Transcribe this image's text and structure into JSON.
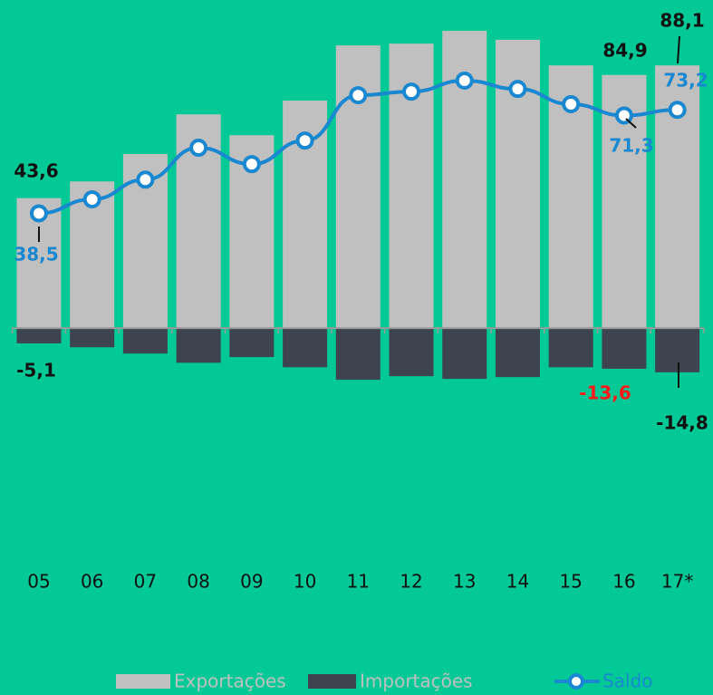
{
  "chart_data": {
    "type": "bar",
    "categories": [
      "05",
      "06",
      "07",
      "08",
      "09",
      "10",
      "11",
      "12",
      "13",
      "14",
      "15",
      "16",
      "17*"
    ],
    "series": [
      {
        "name": "Exportações",
        "color": "#c0c0c0",
        "values": [
          43.6,
          49.2,
          58.4,
          71.7,
          64.7,
          76.3,
          94.8,
          95.4,
          99.7,
          96.7,
          88.1,
          84.9,
          88.1
        ],
        "value_labels": [
          "43,6",
          null,
          null,
          null,
          null,
          null,
          null,
          null,
          null,
          null,
          null,
          "84,9",
          "88,1"
        ]
      },
      {
        "name": "Importações",
        "color": "#3d4450",
        "values": [
          -5.1,
          -6.4,
          -8.5,
          -11.6,
          -9.7,
          -13.1,
          -17.3,
          -16.1,
          -17.0,
          -16.4,
          -13.1,
          -13.6,
          -14.8
        ],
        "value_labels": [
          "-5,1",
          null,
          null,
          null,
          null,
          null,
          null,
          null,
          null,
          null,
          null,
          "-13,6",
          "-14,8"
        ]
      },
      {
        "name": "Saldo",
        "type": "line",
        "color": "#1a88d0",
        "values": [
          38.5,
          43.2,
          49.8,
          60.5,
          55.0,
          62.9,
          78.1,
          79.3,
          83.0,
          80.2,
          75.1,
          71.3,
          73.2
        ],
        "value_labels": [
          "38,5",
          null,
          null,
          null,
          null,
          null,
          null,
          null,
          null,
          null,
          null,
          "71,3",
          "73,2"
        ]
      }
    ],
    "ylim": [
      -20,
      100
    ],
    "grid": false,
    "legend": "bottom"
  }
}
